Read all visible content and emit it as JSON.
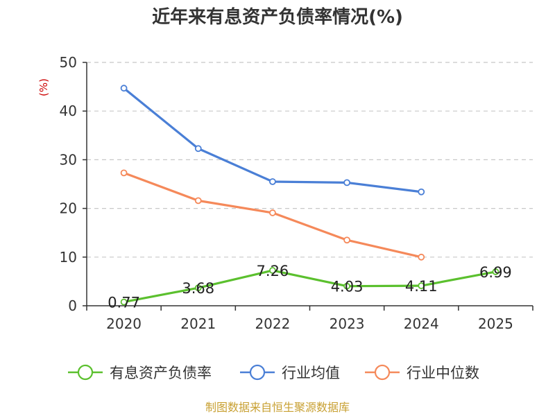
{
  "chart_data": {
    "type": "line",
    "title": "近年来有息资产负债率情况(%)",
    "ylabel": "(%)",
    "xlabel": "",
    "categories": [
      "2020",
      "2021",
      "2022",
      "2023",
      "2024",
      "2025"
    ],
    "ylim": [
      0,
      50
    ],
    "yticks": [
      0,
      10,
      20,
      30,
      40,
      50
    ],
    "grid": "horizontal dashed",
    "legend_position": "bottom",
    "series": [
      {
        "name": "有息资产负债率",
        "color": "#5bc02e",
        "values": [
          0.77,
          3.68,
          7.26,
          4.03,
          4.11,
          6.99
        ],
        "labels": [
          "0.77",
          "3.68",
          "7.26",
          "4.03",
          "4.11",
          "6.99"
        ]
      },
      {
        "name": "行业均值",
        "color": "#4a7fd6",
        "values": [
          44.7,
          32.3,
          25.5,
          25.3,
          23.4,
          null
        ]
      },
      {
        "name": "行业中位数",
        "color": "#f5895a",
        "values": [
          27.3,
          21.6,
          19.1,
          13.5,
          10.0,
          null
        ]
      }
    ],
    "source": "制图数据来自恒生聚源数据库"
  }
}
